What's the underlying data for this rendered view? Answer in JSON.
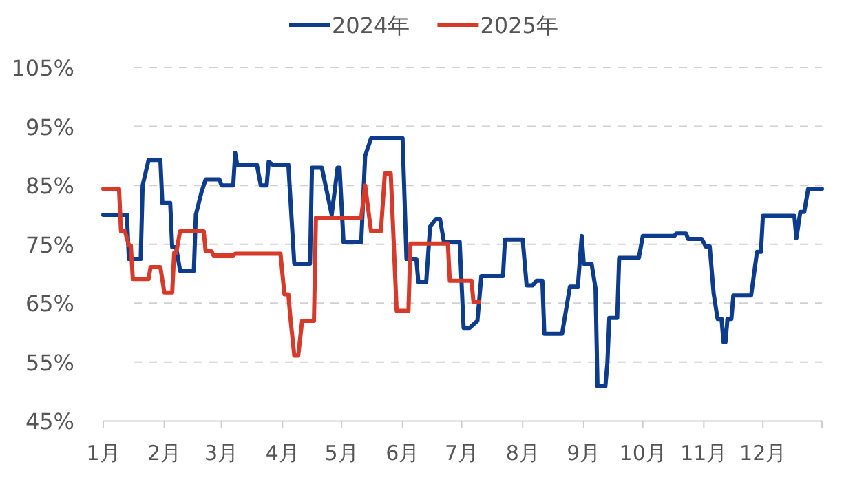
{
  "chart_data": {
    "type": "line",
    "xlim": [
      "--01-01",
      "--12-31"
    ],
    "xticks": [
      {
        "value": "--01-01",
        "label": "1月"
      },
      {
        "value": "--02-01",
        "label": "2月"
      },
      {
        "value": "--03-01",
        "label": "3月"
      },
      {
        "value": "--04-01",
        "label": "4月"
      },
      {
        "value": "--05-01",
        "label": "5月"
      },
      {
        "value": "--06-01",
        "label": "6月"
      },
      {
        "value": "--07-01",
        "label": "7月"
      },
      {
        "value": "--08-01",
        "label": "8月"
      },
      {
        "value": "--09-01",
        "label": "9月"
      },
      {
        "value": "--10-01",
        "label": "10月"
      },
      {
        "value": "--11-01",
        "label": "11月"
      },
      {
        "value": "--12-01",
        "label": "12月"
      },
      {
        "value": "--12-31",
        "label": null
      }
    ],
    "ylim": [
      45,
      105
    ],
    "yticks": [
      {
        "value": 45,
        "label": "45%"
      },
      {
        "value": 55,
        "label": "55%"
      },
      {
        "value": 65,
        "label": "65%"
      },
      {
        "value": 75,
        "label": "75%"
      },
      {
        "value": 85,
        "label": "85%"
      },
      {
        "value": 95,
        "label": "95%"
      },
      {
        "value": 105,
        "label": "105%"
      }
    ],
    "grid": "y",
    "legend": "top",
    "marker": "none",
    "line_style": "solid",
    "series": [
      {
        "name": "2024年",
        "color": "#0d3c8c",
        "x": [
          "--01-01",
          "--01-13",
          "--01-14",
          "--01-20",
          "--01-21",
          "--01-24",
          "--01-30",
          "--01-31",
          "--02-04",
          "--02-05",
          "--02-07",
          "--02-09",
          "--02-16",
          "--02-17",
          "--02-20",
          "--02-22",
          "--02-29",
          "--03-01",
          "--03-07",
          "--03-08",
          "--03-09",
          "--03-19",
          "--03-21",
          "--03-24",
          "--03-25",
          "--03-27",
          "--04-04",
          "--04-07",
          "--04-15",
          "--04-16",
          "--04-21",
          "--04-26",
          "--04-29",
          "--04-30",
          "--05-02",
          "--05-11",
          "--05-13",
          "--05-16",
          "--06-01",
          "--06-03",
          "--06-08",
          "--06-09",
          "--06-13",
          "--06-15",
          "--06-18",
          "--06-20",
          "--06-22",
          "--06-30",
          "--07-02",
          "--07-05",
          "--07-09",
          "--07-11",
          "--07-22",
          "--07-23",
          "--08-01",
          "--08-03",
          "--08-06",
          "--08-08",
          "--08-11",
          "--08-12",
          "--08-21",
          "--08-25",
          "--08-29",
          "--08-31",
          "--09-01",
          "--09-05",
          "--09-07",
          "--09-08",
          "--09-12",
          "--09-13",
          "--09-14",
          "--09-18",
          "--09-19",
          "--09-29",
          "--10-01",
          "--10-17",
          "--10-18",
          "--10-23",
          "--10-24",
          "--10-31",
          "--11-02",
          "--11-04",
          "--11-06",
          "--11-08",
          "--11-10",
          "--11-11",
          "--11-12",
          "--11-13",
          "--11-15",
          "--11-16",
          "--11-25",
          "--11-28",
          "--11-30",
          "--12-01",
          "--12-17",
          "--12-18",
          "--12-20",
          "--12-22",
          "--12-24",
          "--12-31"
        ],
        "values": [
          80,
          80,
          72.5,
          72.5,
          85,
          89.3,
          89.3,
          82,
          82,
          74.5,
          74.5,
          70.5,
          70.5,
          80,
          84,
          86,
          86,
          85,
          85,
          90.5,
          88.5,
          88.5,
          85,
          85,
          89,
          88.5,
          88.5,
          71.7,
          71.7,
          88,
          88,
          80,
          88,
          88,
          75.4,
          75.4,
          90,
          93,
          93,
          72.5,
          72.5,
          68.6,
          68.6,
          78,
          79.3,
          79.3,
          75.4,
          75.4,
          60.8,
          60.8,
          62,
          69.6,
          69.6,
          75.8,
          75.8,
          68,
          68,
          68.8,
          68.8,
          59.8,
          59.8,
          67.8,
          67.8,
          76.4,
          71.7,
          71.7,
          67.5,
          50.9,
          50.9,
          54.8,
          62.5,
          62.5,
          72.7,
          72.7,
          76.4,
          76.4,
          76.8,
          76.8,
          75.9,
          75.9,
          74.6,
          74.6,
          66.6,
          62.3,
          62.3,
          58.4,
          58.4,
          62.3,
          62.3,
          66.3,
          66.3,
          73.7,
          73.7,
          79.8,
          79.8,
          76,
          80.5,
          80.5,
          84.4,
          84.4
        ]
      },
      {
        "name": "2025年",
        "color": "#d63a2a",
        "x": [
          "--01-01",
          "--01-09",
          "--01-10",
          "--01-12",
          "--01-14",
          "--01-15",
          "--01-16",
          "--01-24",
          "--01-25",
          "--01-30",
          "--02-01",
          "--02-05",
          "--02-06",
          "--02-07",
          "--02-09",
          "--02-21",
          "--02-22",
          "--02-25",
          "--02-26",
          "--03-07",
          "--03-08",
          "--03-31",
          "--04-02",
          "--04-04",
          "--04-05",
          "--04-07",
          "--04-09",
          "--04-11",
          "--04-17",
          "--04-18",
          "--05-11",
          "--05-13",
          "--05-16",
          "--05-21",
          "--05-23",
          "--05-26",
          "--05-29",
          "--06-04",
          "--06-05",
          "--06-24",
          "--06-25",
          "--07-06",
          "--07-07",
          "--07-10"
        ],
        "values": [
          84.4,
          84.4,
          77.2,
          77.2,
          74.8,
          74.8,
          69.1,
          69.1,
          71.1,
          71.1,
          66.8,
          66.8,
          73.5,
          73.5,
          77.2,
          77.2,
          73.8,
          73.8,
          73.1,
          73.1,
          73.4,
          73.4,
          66.5,
          66.5,
          62.6,
          56.1,
          56.1,
          62,
          62,
          79.5,
          79.5,
          85,
          77.2,
          77.2,
          87,
          87,
          63.7,
          63.7,
          75.1,
          75.1,
          68.8,
          68.8,
          65.2,
          65.2
        ]
      }
    ]
  }
}
